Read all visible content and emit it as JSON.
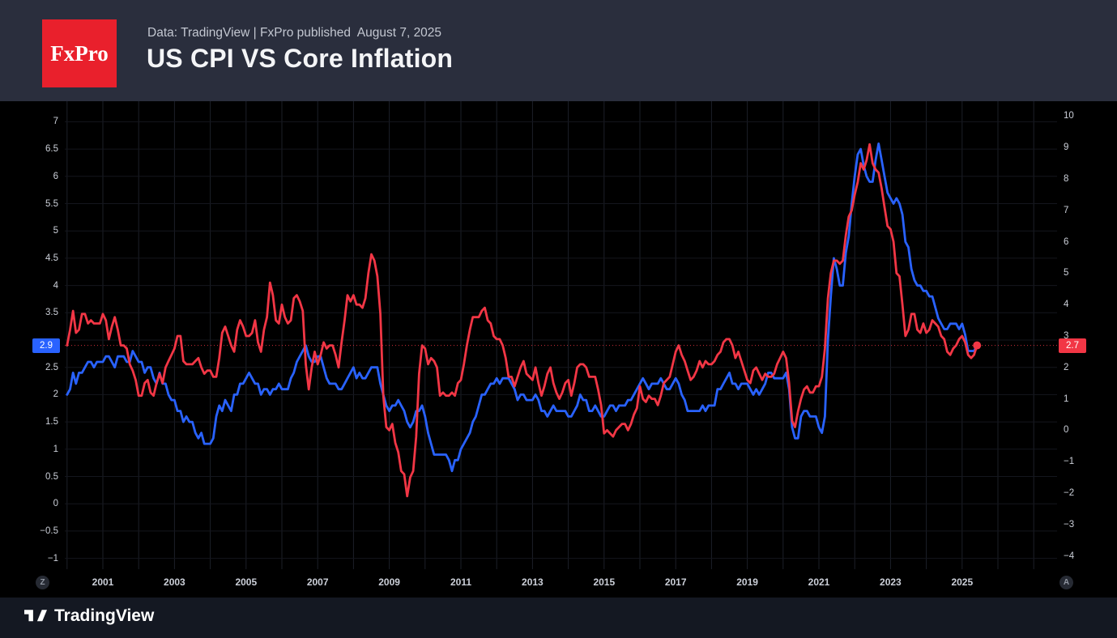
{
  "header": {
    "logo_text": "FxPro",
    "source_line": "Data: TradingView | FxPro published  August 7, 2025",
    "title": "US CPI VS Core Inflation"
  },
  "chart_data": {
    "type": "line",
    "title": "US CPI VS Core Inflation",
    "x_start_year": 2000,
    "x_frequency": "monthly",
    "x_tick_years": [
      2001,
      2003,
      2005,
      2007,
      2009,
      2011,
      2013,
      2015,
      2017,
      2019,
      2021,
      2023,
      2025
    ],
    "grid": true,
    "background": "#000000",
    "left_axis": {
      "tick_min": -1,
      "tick_max": 7,
      "tick_step": 0.5,
      "hidden_tick_labels": [
        3
      ]
    },
    "right_axis": {
      "tick_min": -4,
      "tick_max": 10,
      "tick_step": 1,
      "hidden_tick_labels": []
    },
    "series": [
      {
        "name": "US Core Inflation YoY %",
        "axis": "left",
        "color": "#2962ff",
        "last_value_label": "2.9",
        "values": [
          2.0,
          2.1,
          2.4,
          2.2,
          2.4,
          2.4,
          2.5,
          2.6,
          2.6,
          2.5,
          2.6,
          2.6,
          2.6,
          2.7,
          2.7,
          2.6,
          2.5,
          2.7,
          2.7,
          2.7,
          2.6,
          2.6,
          2.8,
          2.7,
          2.6,
          2.6,
          2.4,
          2.5,
          2.5,
          2.3,
          2.2,
          2.4,
          2.2,
          2.2,
          2.0,
          1.9,
          1.9,
          1.7,
          1.7,
          1.5,
          1.6,
          1.5,
          1.5,
          1.3,
          1.2,
          1.3,
          1.1,
          1.1,
          1.1,
          1.2,
          1.6,
          1.8,
          1.7,
          1.9,
          1.8,
          1.7,
          2.0,
          2.0,
          2.2,
          2.2,
          2.3,
          2.4,
          2.3,
          2.2,
          2.2,
          2.0,
          2.1,
          2.1,
          2.0,
          2.1,
          2.1,
          2.2,
          2.1,
          2.1,
          2.1,
          2.3,
          2.4,
          2.6,
          2.7,
          2.8,
          2.9,
          2.7,
          2.6,
          2.6,
          2.7,
          2.7,
          2.5,
          2.3,
          2.2,
          2.2,
          2.2,
          2.1,
          2.1,
          2.2,
          2.3,
          2.4,
          2.5,
          2.3,
          2.4,
          2.3,
          2.3,
          2.4,
          2.5,
          2.5,
          2.5,
          2.2,
          2.0,
          1.8,
          1.7,
          1.8,
          1.8,
          1.9,
          1.8,
          1.7,
          1.5,
          1.4,
          1.5,
          1.7,
          1.7,
          1.8,
          1.6,
          1.3,
          1.1,
          0.9,
          0.9,
          0.9,
          0.9,
          0.9,
          0.8,
          0.6,
          0.8,
          0.8,
          1.0,
          1.1,
          1.2,
          1.3,
          1.5,
          1.6,
          1.8,
          2.0,
          2.0,
          2.1,
          2.2,
          2.2,
          2.3,
          2.2,
          2.3,
          2.3,
          2.3,
          2.2,
          2.1,
          1.9,
          2.0,
          2.0,
          1.9,
          1.9,
          1.9,
          2.0,
          1.9,
          1.7,
          1.7,
          1.6,
          1.7,
          1.8,
          1.7,
          1.7,
          1.7,
          1.7,
          1.6,
          1.6,
          1.7,
          1.8,
          2.0,
          1.9,
          1.9,
          1.7,
          1.7,
          1.8,
          1.7,
          1.6,
          1.6,
          1.7,
          1.8,
          1.8,
          1.7,
          1.8,
          1.8,
          1.8,
          1.9,
          1.9,
          2.0,
          2.1,
          2.2,
          2.3,
          2.2,
          2.1,
          2.2,
          2.2,
          2.2,
          2.3,
          2.2,
          2.1,
          2.1,
          2.2,
          2.3,
          2.2,
          2.0,
          1.9,
          1.7,
          1.7,
          1.7,
          1.7,
          1.7,
          1.8,
          1.7,
          1.8,
          1.8,
          1.8,
          2.1,
          2.1,
          2.2,
          2.3,
          2.4,
          2.2,
          2.2,
          2.1,
          2.2,
          2.2,
          2.2,
          2.1,
          2.0,
          2.1,
          2.0,
          2.1,
          2.2,
          2.4,
          2.4,
          2.3,
          2.3,
          2.3,
          2.3,
          2.4,
          2.1,
          1.4,
          1.2,
          1.2,
          1.6,
          1.7,
          1.7,
          1.6,
          1.6,
          1.6,
          1.4,
          1.3,
          1.6,
          3.0,
          3.8,
          4.5,
          4.3,
          4.0,
          4.0,
          4.6,
          4.9,
          5.5,
          6.0,
          6.4,
          6.5,
          6.2,
          6.0,
          5.9,
          5.9,
          6.3,
          6.6,
          6.3,
          6.0,
          5.7,
          5.6,
          5.5,
          5.6,
          5.5,
          5.3,
          4.8,
          4.7,
          4.3,
          4.1,
          4.0,
          4.0,
          3.9,
          3.9,
          3.8,
          3.8,
          3.6,
          3.4,
          3.3,
          3.2,
          3.2,
          3.3,
          3.3,
          3.3,
          3.2,
          3.3,
          3.1,
          2.8,
          2.8,
          2.8,
          2.9
        ]
      },
      {
        "name": "US CPI YoY %",
        "axis": "right",
        "color": "#f23645",
        "last_value_label": "2.7",
        "values": [
          2.7,
          3.2,
          3.8,
          3.1,
          3.2,
          3.7,
          3.7,
          3.4,
          3.5,
          3.4,
          3.4,
          3.4,
          3.7,
          3.5,
          2.9,
          3.3,
          3.6,
          3.2,
          2.7,
          2.7,
          2.6,
          2.1,
          1.9,
          1.6,
          1.1,
          1.1,
          1.5,
          1.6,
          1.2,
          1.1,
          1.5,
          1.8,
          1.5,
          2.0,
          2.2,
          2.4,
          2.6,
          3.0,
          3.0,
          2.2,
          2.1,
          2.1,
          2.1,
          2.2,
          2.3,
          2.0,
          1.8,
          1.9,
          1.9,
          1.7,
          1.7,
          2.3,
          3.1,
          3.3,
          3.0,
          2.7,
          2.5,
          3.2,
          3.5,
          3.3,
          3.0,
          3.0,
          3.1,
          3.5,
          2.8,
          2.5,
          3.2,
          3.6,
          4.7,
          4.3,
          3.5,
          3.4,
          4.0,
          3.6,
          3.4,
          3.5,
          4.2,
          4.3,
          4.1,
          3.8,
          2.1,
          1.3,
          2.0,
          2.5,
          2.1,
          2.4,
          2.8,
          2.6,
          2.7,
          2.7,
          2.4,
          2.0,
          2.8,
          3.5,
          4.3,
          4.1,
          4.3,
          4.0,
          4.0,
          3.9,
          4.2,
          5.0,
          5.6,
          5.4,
          4.9,
          3.7,
          1.1,
          0.1,
          0.0,
          0.2,
          -0.4,
          -0.7,
          -1.3,
          -1.4,
          -2.1,
          -1.5,
          -1.3,
          -0.2,
          1.8,
          2.7,
          2.6,
          2.1,
          2.3,
          2.2,
          2.0,
          1.1,
          1.2,
          1.1,
          1.1,
          1.2,
          1.1,
          1.5,
          1.6,
          2.1,
          2.7,
          3.2,
          3.6,
          3.6,
          3.6,
          3.8,
          3.9,
          3.5,
          3.4,
          3.0,
          2.9,
          2.9,
          2.7,
          2.3,
          1.7,
          1.7,
          1.4,
          1.7,
          2.0,
          2.2,
          1.8,
          1.7,
          1.6,
          2.0,
          1.5,
          1.1,
          1.4,
          1.8,
          2.0,
          1.5,
          1.2,
          1.0,
          1.2,
          1.5,
          1.6,
          1.1,
          1.5,
          2.0,
          2.1,
          2.1,
          2.0,
          1.7,
          1.7,
          1.7,
          1.3,
          0.8,
          -0.1,
          0.0,
          -0.1,
          -0.2,
          0.0,
          0.1,
          0.2,
          0.2,
          0.0,
          0.2,
          0.5,
          0.7,
          1.4,
          1.0,
          0.9,
          1.1,
          1.0,
          1.0,
          0.8,
          1.1,
          1.5,
          1.6,
          1.7,
          2.1,
          2.5,
          2.7,
          2.4,
          2.2,
          1.9,
          1.6,
          1.7,
          1.9,
          2.2,
          2.0,
          2.2,
          2.1,
          2.1,
          2.2,
          2.4,
          2.5,
          2.8,
          2.9,
          2.9,
          2.7,
          2.3,
          2.5,
          2.2,
          1.9,
          1.6,
          1.5,
          1.9,
          2.0,
          1.8,
          1.6,
          1.8,
          1.7,
          1.7,
          1.8,
          2.1,
          2.3,
          2.5,
          2.3,
          1.5,
          0.3,
          0.1,
          0.6,
          1.0,
          1.3,
          1.4,
          1.2,
          1.2,
          1.4,
          1.4,
          1.7,
          2.6,
          4.2,
          5.0,
          5.4,
          5.4,
          5.3,
          5.4,
          6.2,
          6.8,
          7.0,
          7.5,
          7.9,
          8.5,
          8.3,
          8.6,
          9.1,
          8.5,
          8.3,
          8.2,
          7.7,
          7.1,
          6.5,
          6.4,
          6.0,
          5.0,
          4.9,
          4.0,
          3.0,
          3.2,
          3.7,
          3.7,
          3.2,
          3.1,
          3.4,
          3.1,
          3.2,
          3.5,
          3.4,
          3.3,
          3.0,
          2.9,
          2.5,
          2.4,
          2.6,
          2.7,
          2.9,
          3.0,
          2.8,
          2.4,
          2.3,
          2.4,
          2.7
        ]
      }
    ]
  },
  "time_axis": {
    "left_scale_badge": "Z",
    "right_scale_badge": "A"
  },
  "footer": {
    "brand": "TradingView"
  }
}
